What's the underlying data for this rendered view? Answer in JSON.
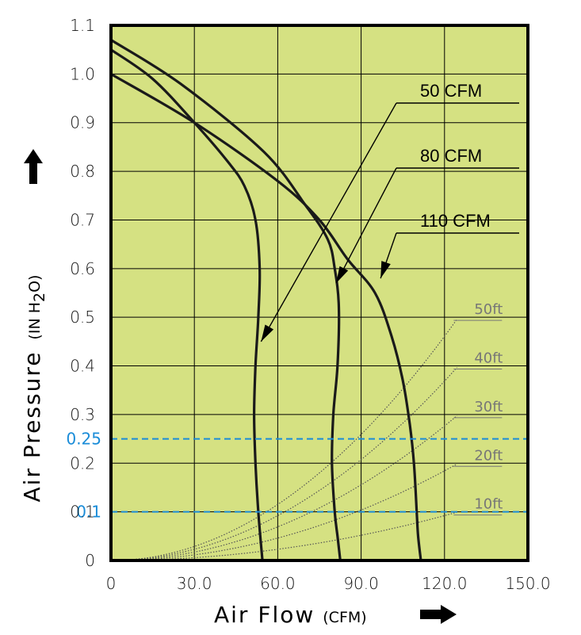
{
  "chart_data": {
    "type": "line",
    "xlabel": "Air Flow",
    "xlabel_unit": "(CFM)",
    "ylabel": "Air Pressure",
    "ylabel_unit": "(IN H",
    "ylabel_unit_sub": "2",
    "ylabel_unit_end": "O)",
    "xlim": [
      0,
      150
    ],
    "ylim": [
      0,
      1.1
    ],
    "x_tick_labels": [
      "0",
      "30.0",
      "60.0",
      "90.0",
      "120.0",
      "150.0"
    ],
    "y_ticks": [
      {
        "v": 0,
        "label": "0"
      },
      {
        "v": 0.1,
        "label": "0.1"
      },
      {
        "v": 0.2,
        "label": "0.2"
      },
      {
        "v": 0.3,
        "label": "0.3"
      },
      {
        "v": 0.4,
        "label": "0.4"
      },
      {
        "v": 0.5,
        "label": "0.5"
      },
      {
        "v": 0.6,
        "label": "0.6"
      },
      {
        "v": 0.7,
        "label": "0.7"
      },
      {
        "v": 0.8,
        "label": "0.8"
      },
      {
        "v": 0.9,
        "label": "0.9"
      },
      {
        "v": 1.0,
        "label": "1.0"
      },
      {
        "v": 1.1,
        "label": "1.1"
      }
    ],
    "grid": true,
    "background_color": "#d5e182",
    "highlight_color": "#1a8cd8",
    "highlight_lines": [
      {
        "y": 0.25,
        "label": "0.25"
      },
      {
        "y": 0.1,
        "label": "0.1"
      }
    ],
    "series": [
      {
        "name": "50 CFM",
        "x": [
          0,
          15,
          30,
          42,
          48,
          52,
          53.5,
          53,
          52,
          51.5,
          52,
          53,
          54.5
        ],
        "y": [
          1.05,
          0.99,
          0.9,
          0.82,
          0.77,
          0.7,
          0.6,
          0.5,
          0.4,
          0.3,
          0.2,
          0.1,
          0
        ]
      },
      {
        "name": "80 CFM",
        "x": [
          0,
          25,
          55,
          70,
          78,
          80.5,
          82,
          81.5,
          80,
          79.5,
          80.5,
          81.5,
          82.5
        ],
        "y": [
          1.07,
          0.98,
          0.84,
          0.73,
          0.66,
          0.6,
          0.52,
          0.4,
          0.3,
          0.2,
          0.1,
          0.05,
          0
        ]
      },
      {
        "name": "110 CFM",
        "x": [
          0,
          30,
          60,
          75,
          85,
          95,
          101,
          105,
          107.5,
          109,
          110,
          110.5,
          111.5
        ],
        "y": [
          1.0,
          0.9,
          0.78,
          0.7,
          0.62,
          0.55,
          0.46,
          0.37,
          0.28,
          0.2,
          0.1,
          0.05,
          0
        ]
      }
    ],
    "system_curves": [
      {
        "name": "50ft",
        "x_at_top": 125,
        "y_at_top": 0.5
      },
      {
        "name": "40ft",
        "x_at_top": 125,
        "y_at_top": 0.4
      },
      {
        "name": "30ft",
        "x_at_top": 125,
        "y_at_top": 0.3
      },
      {
        "name": "20ft",
        "x_at_top": 125,
        "y_at_top": 0.2
      },
      {
        "name": "10ft",
        "x_at_top": 125,
        "y_at_top": 0.1
      }
    ]
  }
}
